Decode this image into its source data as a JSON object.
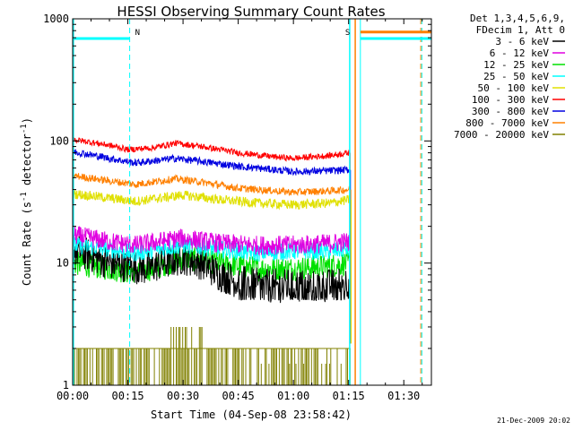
{
  "chart_data": {
    "type": "line",
    "title": "HESSI Observing Summary Count Rates",
    "xlabel": "Start Time (04-Sep-08 23:58:42)",
    "ylabel_main": "Count Rate (s",
    "ylabel_sup1": "-1",
    "ylabel_mid": " detector",
    "ylabel_sup2": "-1",
    "ylabel_end": ")",
    "y_scale": "log",
    "ylim": [
      1,
      1000
    ],
    "xlim_minutes": [
      0,
      97.5
    ],
    "x_ticks": [
      {
        "minute": 0,
        "label": "00:00"
      },
      {
        "minute": 15,
        "label": "00:15"
      },
      {
        "minute": 30,
        "label": "00:30"
      },
      {
        "minute": 45,
        "label": "00:45"
      },
      {
        "minute": 60,
        "label": "01:00"
      },
      {
        "minute": 75,
        "label": "01:15"
      },
      {
        "minute": 90,
        "label": "01:30"
      }
    ],
    "y_ticks": [
      {
        "value": 1,
        "label": "1"
      },
      {
        "value": 10,
        "label": "10"
      },
      {
        "value": 100,
        "label": "100"
      },
      {
        "value": 1000,
        "label": "1000"
      }
    ],
    "legend_header": [
      "Det 1,3,4,5,6,9,",
      "FDecim 1, Att 0"
    ],
    "series": [
      {
        "name": "3 - 6 keV",
        "color": "#000000",
        "points": [
          [
            0,
            13
          ],
          [
            10,
            10
          ],
          [
            20,
            9
          ],
          [
            30,
            11
          ],
          [
            35,
            10
          ],
          [
            40,
            8
          ],
          [
            45,
            7
          ],
          [
            52,
            6.5
          ],
          [
            60,
            6.5
          ],
          [
            70,
            6.5
          ],
          [
            75,
            7
          ]
        ]
      },
      {
        "name": "6 - 12 keV",
        "color": "#e000e0",
        "points": [
          [
            0,
            17
          ],
          [
            10,
            15
          ],
          [
            17,
            14
          ],
          [
            30,
            16
          ],
          [
            40,
            14.5
          ],
          [
            50,
            14
          ],
          [
            60,
            14
          ],
          [
            70,
            14.5
          ],
          [
            75,
            15
          ]
        ]
      },
      {
        "name": "12 - 25 keV",
        "color": "#00e000",
        "points": [
          [
            0,
            10
          ],
          [
            10,
            9
          ],
          [
            15,
            8.5
          ],
          [
            22,
            9
          ],
          [
            30,
            11
          ],
          [
            40,
            10
          ],
          [
            50,
            9
          ],
          [
            60,
            9
          ],
          [
            70,
            9.5
          ],
          [
            75,
            10
          ]
        ]
      },
      {
        "name": "25 - 50 keV",
        "color": "#00ffff",
        "points": [
          [
            0,
            14
          ],
          [
            10,
            13
          ],
          [
            17,
            12
          ],
          [
            30,
            14
          ],
          [
            40,
            13
          ],
          [
            50,
            12
          ],
          [
            60,
            12.5
          ],
          [
            70,
            12.5
          ],
          [
            75,
            13
          ]
        ]
      },
      {
        "name": "50 - 100 keV",
        "color": "#e0e000",
        "points": [
          [
            0,
            37
          ],
          [
            10,
            34
          ],
          [
            17,
            32
          ],
          [
            30,
            36
          ],
          [
            40,
            33
          ],
          [
            50,
            31
          ],
          [
            60,
            30
          ],
          [
            70,
            31
          ],
          [
            75,
            33
          ]
        ]
      },
      {
        "name": "100 - 300 keV",
        "color": "#ff0000",
        "points": [
          [
            0,
            103
          ],
          [
            10,
            92
          ],
          [
            15,
            85
          ],
          [
            22,
            88
          ],
          [
            28,
            96
          ],
          [
            35,
            90
          ],
          [
            45,
            80
          ],
          [
            55,
            74
          ],
          [
            60,
            72
          ],
          [
            70,
            76
          ],
          [
            75,
            80
          ]
        ]
      },
      {
        "name": "300 - 800 keV",
        "color": "#0000e0",
        "points": [
          [
            0,
            82
          ],
          [
            10,
            72
          ],
          [
            17,
            66
          ],
          [
            28,
            72
          ],
          [
            35,
            68
          ],
          [
            45,
            62
          ],
          [
            55,
            58
          ],
          [
            60,
            56
          ],
          [
            70,
            57
          ],
          [
            75,
            58
          ]
        ]
      },
      {
        "name": "800 - 7000 keV",
        "color": "#ff8000",
        "points": [
          [
            0,
            52
          ],
          [
            10,
            47
          ],
          [
            17,
            44
          ],
          [
            28,
            49
          ],
          [
            35,
            46
          ],
          [
            45,
            41
          ],
          [
            55,
            39
          ],
          [
            60,
            38
          ],
          [
            70,
            39
          ],
          [
            75,
            40
          ]
        ]
      },
      {
        "name": "7000 - 20000 keV",
        "color": "#808000",
        "points": []
      }
    ],
    "markers": [
      {
        "label": "N",
        "minute": 15.5
      },
      {
        "label": "S",
        "minute": 75.3
      }
    ],
    "timestamp": "21-Dec-2009 20:02"
  }
}
